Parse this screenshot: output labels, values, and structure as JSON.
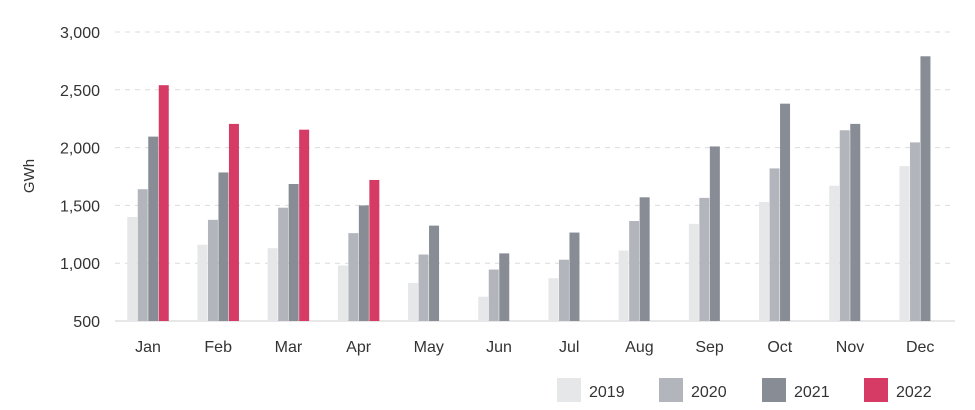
{
  "chart_data": {
    "type": "bar",
    "title": "",
    "xlabel": "",
    "ylabel": "GWh",
    "ylim": [
      500,
      3000
    ],
    "yticks": [
      500,
      1000,
      1500,
      2000,
      2500,
      3000
    ],
    "ytick_labels": [
      "500",
      "1,000",
      "1,500",
      "2,000",
      "2,500",
      "3,000"
    ],
    "grid": "horizontal dashed",
    "legend_position": "bottom-right",
    "categories": [
      "Jan",
      "Feb",
      "Mar",
      "Apr",
      "May",
      "Jun",
      "Jul",
      "Aug",
      "Sep",
      "Oct",
      "Nov",
      "Dec"
    ],
    "series": [
      {
        "name": "2019",
        "color": "#e6e7e9",
        "values": [
          1400,
          1160,
          1130,
          980,
          830,
          710,
          870,
          1110,
          1340,
          1530,
          1670,
          1840
        ]
      },
      {
        "name": "2020",
        "color": "#b2b5bb",
        "values": [
          1640,
          1375,
          1480,
          1260,
          1075,
          945,
          1030,
          1365,
          1565,
          1820,
          2150,
          2045
        ]
      },
      {
        "name": "2021",
        "color": "#878c95",
        "values": [
          2095,
          1785,
          1685,
          1500,
          1325,
          1085,
          1265,
          1570,
          2010,
          2380,
          2205,
          2790
        ]
      },
      {
        "name": "2022",
        "color": "#d63b66",
        "values": [
          2540,
          2205,
          2155,
          1720,
          null,
          null,
          null,
          null,
          null,
          null,
          null,
          null
        ]
      }
    ]
  }
}
